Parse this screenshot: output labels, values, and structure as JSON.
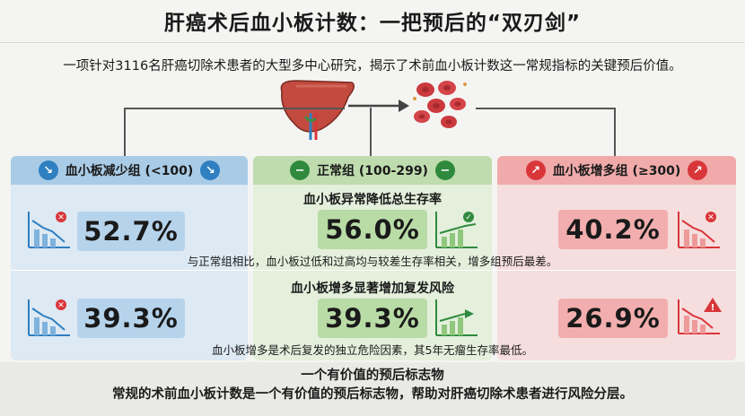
{
  "header": {
    "title": "肝癌术后血小板计数：一把预后的“双刃剑”",
    "subtitle": "一项针对3116名肝癌切除术患者的大型多中心研究，揭示了术前血小板计数这一常规指标的关键预后价值。"
  },
  "groups": {
    "low": {
      "label": "血小板减少组 (<100)",
      "color": "#2f7fc1"
    },
    "normal": {
      "label": "正常组 (100-299)",
      "color": "#2f8a3e"
    },
    "high": {
      "label": "血小板增多组 (≥300)",
      "color": "#d9363a"
    }
  },
  "row1": {
    "title": "血小板异常降低总生存率",
    "low_value": "52.7%",
    "normal_value": "56.0%",
    "high_value": "40.2%",
    "note": "与正常组相比，血小板过低和过高均与较差生存率相关，增多组预后最差。"
  },
  "row2": {
    "title": "血小板增多显著增加复发风险",
    "low_value": "39.3%",
    "normal_value": "39.3%",
    "high_value": "26.9%",
    "note": "血小板增多是术后复发的独立危险因素，其5年无瘤生存率最低。"
  },
  "footer": {
    "heading": "一个有价值的预后标志物",
    "text": "常规的术前血小板计数是一个有价值的预后标志物，帮助对肝癌切除术患者进行风险分层。"
  },
  "icons": [
    "liver-icon",
    "blood-cells-icon",
    "declining-chart-icon",
    "rising-chart-icon",
    "check-icon",
    "x-icon",
    "warning-icon"
  ]
}
